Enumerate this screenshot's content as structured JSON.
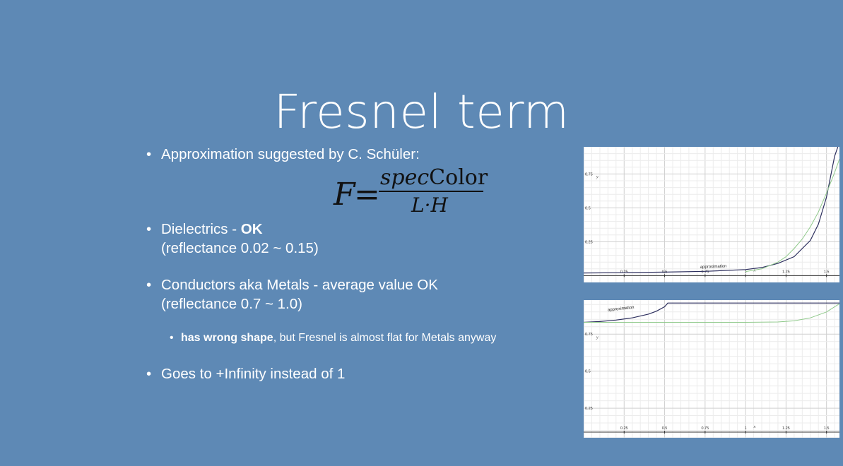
{
  "slide": {
    "title": "Fresnel term",
    "bullets": [
      {
        "text": "Approximation suggested by C. Schüler:"
      },
      {
        "prefix": "Dielectrics - ",
        "bold": "OK",
        "line2": "(reflectance 0.02 ~ 0.15)"
      },
      {
        "text": "Conductors aka Metals - average value OK",
        "line2": "(reflectance 0.7 ~ 1.0)"
      },
      {
        "text": "Goes to +Infinity instead of 1"
      }
    ],
    "sub_bullet": {
      "bold": "has wrong shape",
      "rest": ", but Fresnel is almost flat for Metals anyway"
    }
  },
  "formula": {
    "lhs": "F",
    "eq": "=",
    "num_italic": "spec",
    "num_roman": "Color",
    "den": "L·H"
  },
  "colors": {
    "background": "#5e89b5",
    "approximation_curve": "#2d2f5e",
    "fresnel_curve": "#8fc98a",
    "grid": "#e6e6e6",
    "axis": "#333333"
  },
  "chart_data": [
    {
      "type": "line",
      "title": "",
      "xlabel": "x",
      "ylabel": "y",
      "xticks": [
        "0.25",
        "0.5",
        "0.75",
        "1",
        "1.25",
        "1.5"
      ],
      "yticks": [
        "0.25",
        "0.5",
        "0.75"
      ],
      "xlim": [
        0,
        1.58
      ],
      "ylim": [
        -0.05,
        0.95
      ],
      "annotation": "approximation",
      "series": [
        {
          "name": "approximation",
          "color": "#2d2f5e",
          "x": [
            0,
            0.25,
            0.5,
            0.75,
            1.0,
            1.1,
            1.2,
            1.3,
            1.4,
            1.45,
            1.5,
            1.53,
            1.55,
            1.57
          ],
          "y": [
            0.02,
            0.022,
            0.026,
            0.032,
            0.045,
            0.06,
            0.09,
            0.14,
            0.26,
            0.38,
            0.58,
            0.76,
            0.88,
            0.95
          ]
        },
        {
          "color": "#8fc98a",
          "x": [
            1.0,
            1.1,
            1.2,
            1.25,
            1.3,
            1.35,
            1.4,
            1.45,
            1.5,
            1.55,
            1.58
          ],
          "y": [
            0.03,
            0.05,
            0.1,
            0.14,
            0.2,
            0.27,
            0.36,
            0.47,
            0.61,
            0.76,
            0.86
          ]
        }
      ]
    },
    {
      "type": "line",
      "title": "",
      "xlabel": "x",
      "ylabel": "y",
      "xticks": [
        "0.25",
        "0.5",
        "0.75",
        "1",
        "1.25",
        "1.5"
      ],
      "yticks": [
        "0.25",
        "0.5",
        "0.75"
      ],
      "xlim": [
        0,
        1.58
      ],
      "ylim": [
        0.05,
        0.98
      ],
      "annotation": "approximation",
      "series": [
        {
          "name": "approximation",
          "color": "#2d2f5e",
          "x": [
            0,
            0.1,
            0.2,
            0.3,
            0.4,
            0.45,
            0.5,
            0.52,
            1.58
          ],
          "y": [
            0.83,
            0.835,
            0.845,
            0.86,
            0.885,
            0.905,
            0.935,
            0.96,
            0.96
          ]
        },
        {
          "color": "#8fc98a",
          "x": [
            0,
            0.5,
            1.0,
            1.2,
            1.3,
            1.4,
            1.5,
            1.58
          ],
          "y": [
            0.83,
            0.83,
            0.83,
            0.832,
            0.84,
            0.86,
            0.9,
            0.955
          ]
        }
      ]
    }
  ]
}
